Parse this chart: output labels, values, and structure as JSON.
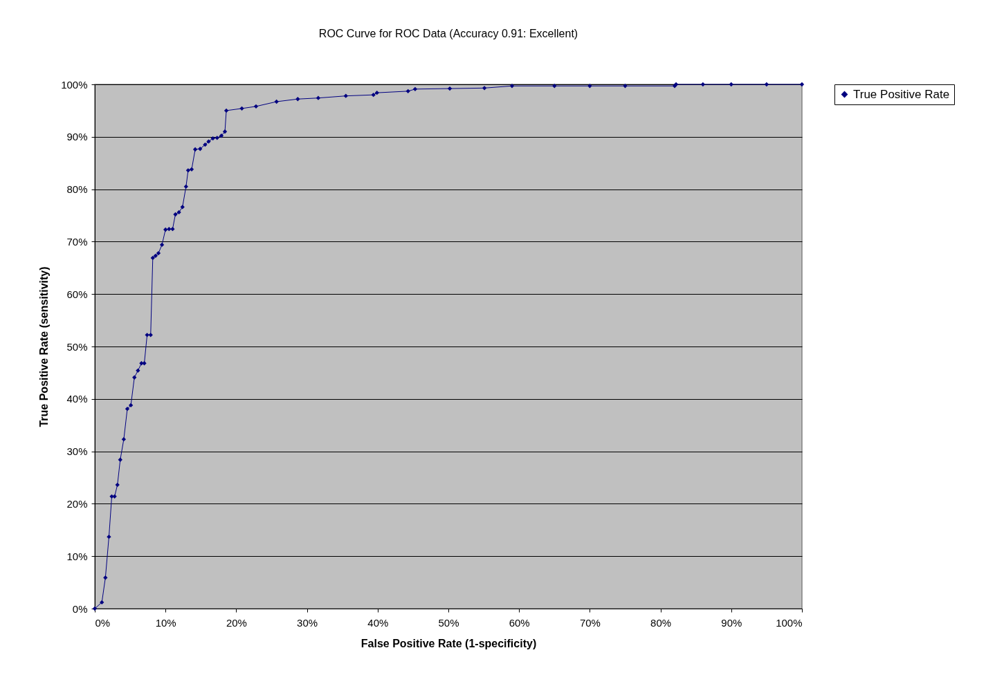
{
  "chart_data": {
    "type": "line",
    "title": "ROC Curve for ROC Data (Accuracy 0.91: Excellent)",
    "xlabel": "False Positive Rate (1-specificity)",
    "ylabel": "True Positive Rate (sensitivity)",
    "xlim": [
      0,
      100
    ],
    "ylim": [
      0,
      100
    ],
    "xticks": [
      {
        "value": 0,
        "label": "0%"
      },
      {
        "value": 10,
        "label": "10%"
      },
      {
        "value": 20,
        "label": "20%"
      },
      {
        "value": 30,
        "label": "30%"
      },
      {
        "value": 40,
        "label": "40%"
      },
      {
        "value": 50,
        "label": "50%"
      },
      {
        "value": 60,
        "label": "60%"
      },
      {
        "value": 70,
        "label": "70%"
      },
      {
        "value": 80,
        "label": "80%"
      },
      {
        "value": 90,
        "label": "90%"
      },
      {
        "value": 100,
        "label": "100%"
      }
    ],
    "yticks": [
      {
        "value": 0,
        "label": "0%"
      },
      {
        "value": 10,
        "label": "10%"
      },
      {
        "value": 20,
        "label": "20%"
      },
      {
        "value": 30,
        "label": "30%"
      },
      {
        "value": 40,
        "label": "40%"
      },
      {
        "value": 50,
        "label": "50%"
      },
      {
        "value": 60,
        "label": "60%"
      },
      {
        "value": 70,
        "label": "70%"
      },
      {
        "value": 80,
        "label": "80%"
      },
      {
        "value": 90,
        "label": "90%"
      },
      {
        "value": 100,
        "label": "100%"
      }
    ],
    "grid": "y",
    "legend": "right",
    "marker": "diamond",
    "line_style": "solid",
    "series": [
      {
        "name": "True Positive Rate",
        "color": "#000080",
        "x": [
          0,
          1.0,
          1.5,
          2.0,
          2.4,
          2.8,
          3.2,
          3.6,
          4.1,
          4.6,
          5.1,
          5.6,
          6.1,
          6.6,
          7.0,
          7.4,
          7.9,
          8.2,
          8.6,
          9.0,
          9.5,
          10.0,
          10.5,
          11.0,
          11.4,
          11.9,
          12.4,
          12.9,
          13.2,
          13.7,
          14.2,
          14.9,
          15.6,
          16.1,
          16.7,
          17.3,
          17.9,
          18.4,
          18.6,
          20.8,
          22.8,
          25.7,
          28.7,
          31.6,
          35.5,
          39.4,
          39.9,
          44.3,
          45.3,
          50.2,
          55.1,
          59.0,
          65.0,
          70.0,
          75.0,
          82.0,
          82.2,
          86.0,
          90.0,
          95.0,
          100
        ],
        "values": [
          0,
          1.2,
          5.9,
          13.7,
          21.4,
          21.4,
          23.6,
          28.4,
          32.3,
          38.1,
          38.8,
          44.1,
          45.4,
          46.8,
          46.8,
          52.2,
          52.2,
          66.9,
          67.3,
          67.8,
          69.4,
          72.3,
          72.4,
          72.4,
          75.2,
          75.6,
          76.6,
          80.5,
          83.6,
          83.8,
          87.6,
          87.7,
          88.5,
          89.1,
          89.7,
          89.8,
          90.2,
          91.0,
          95.0,
          95.4,
          95.8,
          96.7,
          97.2,
          97.4,
          97.8,
          98.0,
          98.4,
          98.7,
          99.1,
          99.2,
          99.3,
          99.7,
          99.7,
          99.7,
          99.7,
          99.7,
          100,
          100,
          100,
          100,
          100
        ]
      }
    ]
  }
}
